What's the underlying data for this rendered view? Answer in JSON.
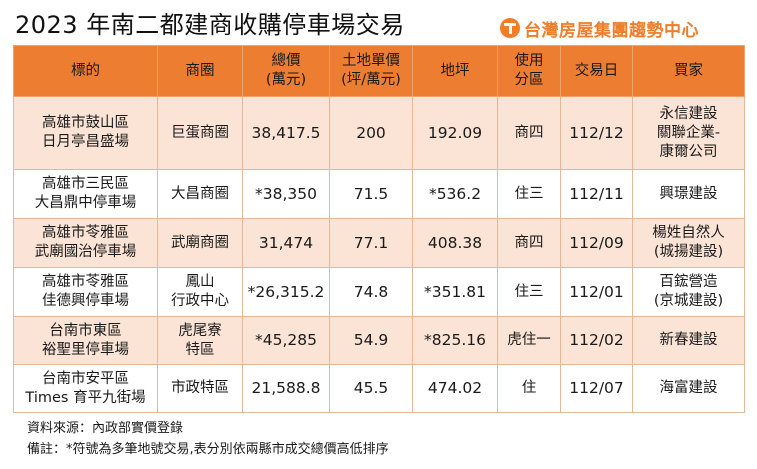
{
  "title": "2023 年南二都建商收購停車場交易",
  "brand": {
    "logo_icon": "t-circle-logo-icon",
    "name": "台灣房屋集團趨勢中心",
    "color": "#ef7d2a"
  },
  "table": {
    "header_color": "#ed7d31",
    "shade_color": "#fbe4d5",
    "columns": [
      {
        "lines": [
          "標的"
        ]
      },
      {
        "lines": [
          "商圈"
        ]
      },
      {
        "lines": [
          "總價",
          "(萬元)"
        ]
      },
      {
        "lines": [
          "土地單價",
          "(坪/萬元)"
        ]
      },
      {
        "lines": [
          "地坪"
        ]
      },
      {
        "lines": [
          "使用",
          "分區"
        ]
      },
      {
        "lines": [
          "交易日"
        ]
      },
      {
        "lines": [
          "買家"
        ]
      }
    ],
    "rows": [
      {
        "target": [
          "高雄市鼓山區",
          "日月亭昌盛場"
        ],
        "district": [
          "巨蛋商圈"
        ],
        "total_price": "38,417.5",
        "unit_price": "200",
        "land_area": "192.09",
        "zoning": "商四",
        "date": "112/12",
        "buyer": [
          "永信建設",
          "關聯企業-",
          "康爾公司"
        ]
      },
      {
        "target": [
          "高雄市三民區",
          "大昌鼎中停車場"
        ],
        "district": [
          "大昌商圈"
        ],
        "total_price": "*38,350",
        "unit_price": "71.5",
        "land_area": "*536.2",
        "zoning": "住三",
        "date": "112/11",
        "buyer": [
          "興璟建設"
        ]
      },
      {
        "target": [
          "高雄市苓雅區",
          "武廟國治停車場"
        ],
        "district": [
          "武廟商圈"
        ],
        "total_price": "31,474",
        "unit_price": "77.1",
        "land_area": "408.38",
        "zoning": "商四",
        "date": "112/09",
        "buyer": [
          "楊姓自然人",
          "(城揚建設)"
        ]
      },
      {
        "target": [
          "高雄市苓雅區",
          "佳德興停車場"
        ],
        "district": [
          "鳳山",
          "行政中心"
        ],
        "total_price": "*26,315.2",
        "unit_price": "74.8",
        "land_area": "*351.81",
        "zoning": "住三",
        "date": "112/01",
        "buyer": [
          "百鋐營造",
          "(京城建設)"
        ]
      },
      {
        "target": [
          "台南市東區",
          "裕聖里停車場"
        ],
        "district": [
          "虎尾寮",
          "特區"
        ],
        "total_price": "*45,285",
        "unit_price": "54.9",
        "land_area": "*825.16",
        "zoning": "虎住一",
        "date": "112/02",
        "buyer": [
          "新春建設"
        ]
      },
      {
        "target": [
          "台南市安平區",
          "Times 育平九街場"
        ],
        "district": [
          "市政特區"
        ],
        "total_price": "21,588.8",
        "unit_price": "45.5",
        "land_area": "474.02",
        "zoning": "住",
        "date": "112/07",
        "buyer": [
          "海富建設"
        ]
      }
    ]
  },
  "notes": {
    "source": "資料來源：內政部實價登錄",
    "remark": "備註：*符號為多筆地號交易,表分別依兩縣市成交總價高低排序"
  }
}
